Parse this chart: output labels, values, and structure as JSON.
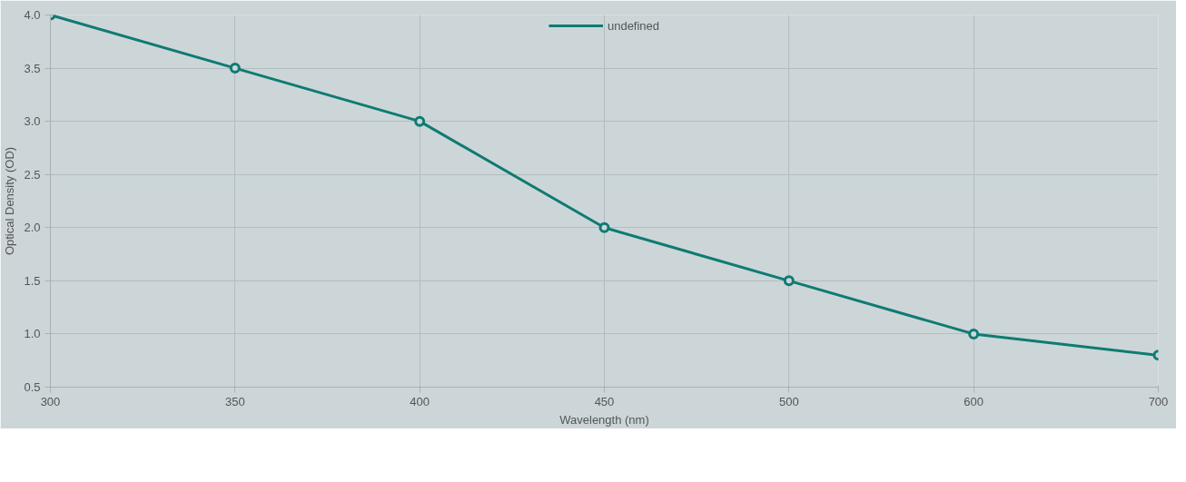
{
  "chart_data": {
    "type": "line",
    "xlabel": "Wavelength (nm)",
    "ylabel": "Optical Density (OD)",
    "categories": [
      "300",
      "350",
      "400",
      "450",
      "500",
      "600",
      "700"
    ],
    "series": [
      {
        "name": "undefined",
        "color": "#0f7b72",
        "values": [
          4.0,
          3.5,
          3.0,
          2.0,
          1.5,
          1.0,
          0.8
        ]
      }
    ],
    "ylim": [
      0.5,
      4.0
    ],
    "yticks": [
      {
        "value": 0.5,
        "label": "0.5"
      },
      {
        "value": 1,
        "label": "1.0"
      },
      {
        "value": 1.5,
        "label": "1.5"
      },
      {
        "value": 2,
        "label": "2.0"
      },
      {
        "value": 2.5,
        "label": "2.5"
      },
      {
        "value": 3,
        "label": "3.0"
      },
      {
        "value": 3.5,
        "label": "3.5"
      },
      {
        "value": 4,
        "label": "4.0"
      }
    ],
    "grid": true,
    "legend": "top",
    "marker": "circle",
    "line_style": "solid"
  }
}
